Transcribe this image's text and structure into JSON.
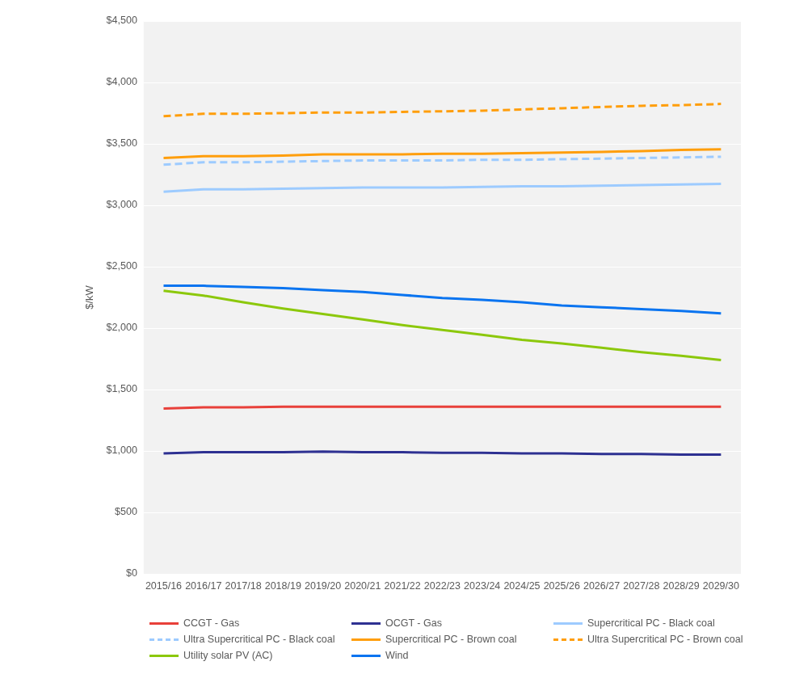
{
  "chart_data": {
    "type": "line",
    "ylabel": "$/kW",
    "categories": [
      "2015/16",
      "2016/17",
      "2017/18",
      "2018/19",
      "2019/20",
      "2020/21",
      "2021/22",
      "2022/23",
      "2023/24",
      "2024/25",
      "2025/26",
      "2026/27",
      "2027/28",
      "2028/29",
      "2029/30"
    ],
    "ylim": [
      0,
      4500
    ],
    "yticks": [
      {
        "value": 0,
        "label": "$0"
      },
      {
        "value": 500,
        "label": "$500"
      },
      {
        "value": 1000,
        "label": "$1,000"
      },
      {
        "value": 1500,
        "label": "$1,500"
      },
      {
        "value": 2000,
        "label": "$2,000"
      },
      {
        "value": 2500,
        "label": "$2,500"
      },
      {
        "value": 3000,
        "label": "$3,000"
      },
      {
        "value": 3500,
        "label": "$3,500"
      },
      {
        "value": 4000,
        "label": "$4,000"
      },
      {
        "value": 4500,
        "label": "$4,500"
      }
    ],
    "grid": "y",
    "legend": "bottom",
    "marker": "none",
    "series": [
      {
        "name": "CCGT - Gas",
        "color": "#e8403a",
        "values": [
          1345,
          1355,
          1355,
          1360,
          1360,
          1360,
          1360,
          1360,
          1360,
          1360,
          1360,
          1360,
          1360,
          1360,
          1360
        ]
      },
      {
        "name": "OCGT - Gas",
        "color": "#2e3192",
        "values": [
          980,
          990,
          990,
          990,
          995,
          990,
          990,
          985,
          985,
          980,
          980,
          975,
          975,
          970,
          970
        ]
      },
      {
        "name": "Supercritical PC - Black coal",
        "color": "#9dcbff",
        "values": [
          3110,
          3130,
          3130,
          3135,
          3140,
          3145,
          3145,
          3145,
          3150,
          3155,
          3155,
          3160,
          3165,
          3170,
          3175
        ]
      },
      {
        "name": "Ultra Supercritical PC - Black coal",
        "color": "#9dcbff",
        "line_style": "dashed",
        "values": [
          3330,
          3350,
          3350,
          3355,
          3360,
          3365,
          3365,
          3365,
          3370,
          3370,
          3375,
          3380,
          3385,
          3390,
          3395
        ]
      },
      {
        "name": "Supercritical PC - Brown coal",
        "color": "#ff9e0c",
        "values": [
          3385,
          3400,
          3400,
          3405,
          3415,
          3415,
          3415,
          3420,
          3420,
          3425,
          3430,
          3435,
          3440,
          3450,
          3455
        ]
      },
      {
        "name": "Ultra Supercritical PC - Brown coal",
        "color": "#ff9e0c",
        "line_style": "dashed",
        "values": [
          3725,
          3745,
          3745,
          3750,
          3755,
          3755,
          3760,
          3765,
          3770,
          3780,
          3790,
          3800,
          3810,
          3815,
          3825
        ]
      },
      {
        "name": "Utility solar PV (AC)",
        "color": "#8cc80c",
        "values": [
          2305,
          2265,
          2210,
          2160,
          2115,
          2070,
          2025,
          1985,
          1945,
          1905,
          1875,
          1840,
          1805,
          1775,
          1740
        ]
      },
      {
        "name": "Wind",
        "color": "#0a74f0",
        "values": [
          2345,
          2345,
          2335,
          2325,
          2310,
          2295,
          2270,
          2245,
          2230,
          2210,
          2185,
          2170,
          2155,
          2140,
          2120
        ]
      }
    ]
  }
}
